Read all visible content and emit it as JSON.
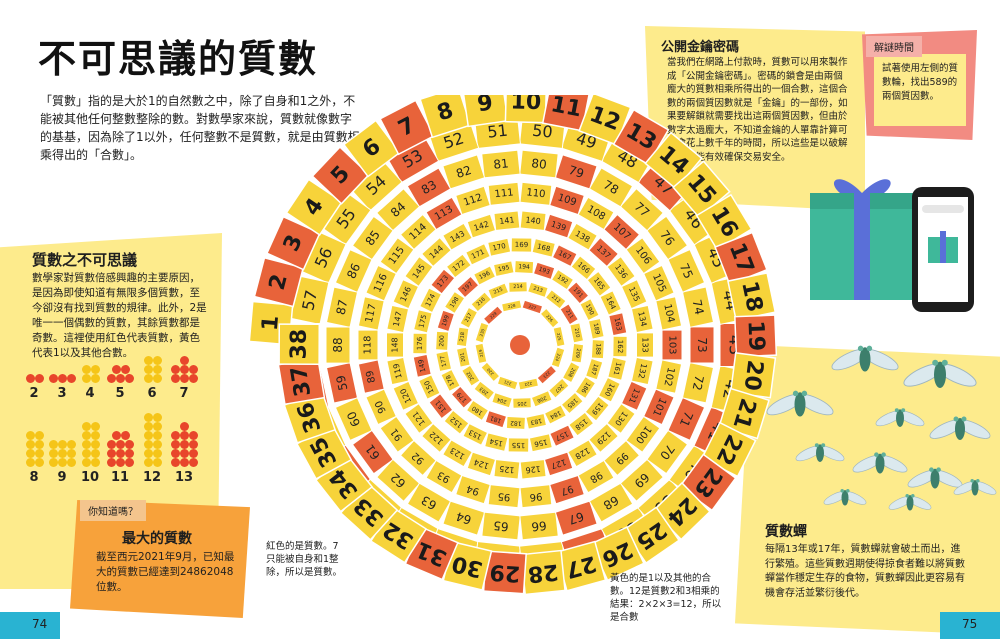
{
  "title": "不可思議的質數",
  "intro": "「質數」指的是大於1的自然數之中，除了自身和1之外，不能被其他任何整數整除的數。對數學家來說，質數就像數字的基基，因為除了1以外，任何整數不是質數，就是由質數相乘得出的「合數」。",
  "wonder": {
    "heading": "質數之不可思議",
    "text": "數學家對質數倍感興趣的主要原因，是因為即使知道有無限多個質數，至今卻沒有找到質數的規律。此外，2是唯一一個偶數的質數，其餘質數都是奇數。這裡使用紅色代表質數，黃色代表1以及其他合數。",
    "labels": [
      "2",
      "3",
      "4",
      "5",
      "6",
      "7",
      "8",
      "9",
      "10",
      "11",
      "12",
      "13"
    ]
  },
  "largest": {
    "tag": "你知道嗎？",
    "heading": "最大的質數",
    "text": "截至西元2021年9月，已知最大的質數已經達到24862048位數。"
  },
  "crypto": {
    "heading": "公開金鑰密碼",
    "text": "當我們在網路上付款時，質數可以用來製作成「公開金鑰密碼」。密碼的鎖會是由兩個龐大的質數相乘所得出的一個合數，這個合數的兩個質因數就是「金鑰」的一部份，如果要解鎖就需要找出這兩個質因數，但由於數字太過龐大，不知道金鑰的人單靠計算可能會花上數千年的時間，所以這些是以破解的鎖，能有效確保交易安全。"
  },
  "puzzle": {
    "tag": "解謎時間",
    "text": "試著使用左側的質數輪，找出589的兩個質因數。"
  },
  "cicada": {
    "heading": "質數蟬",
    "text": "每隔13年或17年，質數蟬就會破土而出，進行繁殖。這些質數週期使得掠食者難以將質數蟬當作穩定生存的食物，質數蟬因此更容易有機會存活並繁衍後代。"
  },
  "note_red": "紅色的是質數。7只能被自身和1整除，所以是質數。",
  "note_yellow": "黃色的是1以及其他的合數。12是質數2和3相乘的結果：2×2×3=12，所以是合數",
  "pages": {
    "left": "74",
    "right": "75"
  },
  "wheel": {
    "outer_numbers": [
      "1",
      "2",
      "3",
      "4",
      "5",
      "6",
      "7",
      "8",
      "9",
      "10",
      "11",
      "12",
      "13",
      "14",
      "15",
      "16",
      "17",
      "18",
      "19",
      "20",
      "21",
      "22",
      "23",
      "24",
      "25",
      "26",
      "27",
      "28",
      "29",
      "30",
      "31",
      "32",
      "33",
      "34",
      "35",
      "36",
      "37",
      "38"
    ]
  },
  "colors": {
    "prime": "#e8633a",
    "composite": "#f7d33a",
    "panel": "#fdeb8c",
    "accent": "#29b3d2"
  }
}
